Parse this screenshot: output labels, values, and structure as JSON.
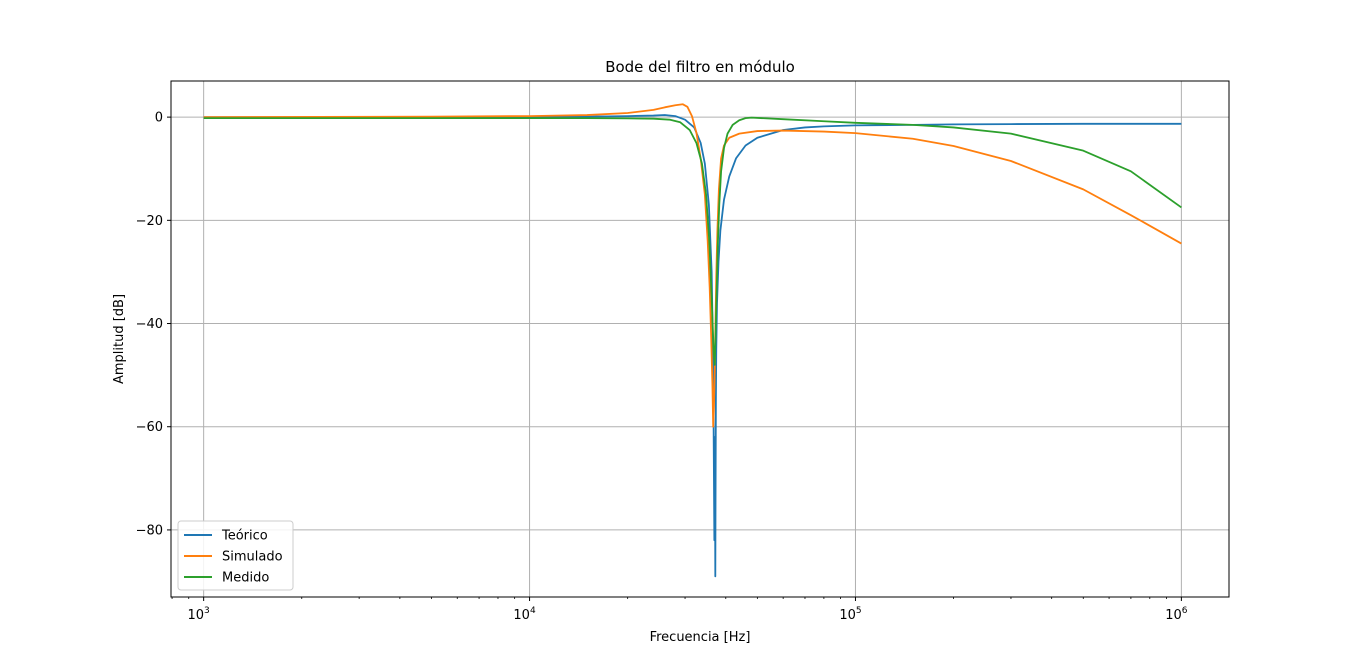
{
  "chart_data": {
    "type": "line",
    "title": "Bode del filtro en módulo",
    "xlabel": "Frecuencia [Hz]",
    "ylabel": "Amplitud [dB]",
    "xscale": "log",
    "xlim": [
      794,
      1400000
    ],
    "ylim": [
      -93,
      7
    ],
    "xticks": [
      1000,
      10000,
      100000,
      1000000
    ],
    "xtick_labels": [
      {
        "base": "10",
        "exp": "3"
      },
      {
        "base": "10",
        "exp": "4"
      },
      {
        "base": "10",
        "exp": "5"
      },
      {
        "base": "10",
        "exp": "6"
      }
    ],
    "yticks": [
      0,
      -20,
      -40,
      -60,
      -80
    ],
    "ytick_labels": [
      "0",
      "−20",
      "−40",
      "−60",
      "−80"
    ],
    "grid": true,
    "legend_position": "lower-left",
    "series": [
      {
        "name": "Teórico",
        "color": "#1f77b4",
        "x": [
          1000,
          5000,
          10000,
          15000,
          20000,
          24000,
          26000,
          28000,
          30000,
          32000,
          33500,
          34500,
          35500,
          36200,
          36600,
          36900,
          37000,
          37050,
          37150,
          37200,
          37300,
          37400,
          37600,
          38000,
          38500,
          39500,
          41000,
          43000,
          46000,
          50000,
          60000,
          70000,
          80000,
          100000,
          150000,
          200000,
          300000,
          500000,
          1000000
        ],
        "y": [
          0,
          0,
          0,
          0.1,
          0.2,
          0.3,
          0.4,
          0.2,
          -0.5,
          -2,
          -5,
          -9,
          -17,
          -30,
          -48,
          -82,
          -62,
          -65,
          -89,
          -76,
          -55,
          -45,
          -36,
          -28,
          -22,
          -16,
          -11.5,
          -8,
          -5.5,
          -4,
          -2.5,
          -2,
          -1.8,
          -1.6,
          -1.5,
          -1.4,
          -1.35,
          -1.3,
          -1.3
        ]
      },
      {
        "name": "Simulado",
        "color": "#ff7f0e",
        "x": [
          1000,
          5000,
          10000,
          15000,
          20000,
          24000,
          26000,
          28000,
          29500,
          30500,
          31500,
          32500,
          33500,
          34500,
          35200,
          35700,
          36100,
          36400,
          36600,
          36800,
          37000,
          37200,
          37400,
          37700,
          38100,
          38700,
          39500,
          41000,
          44000,
          50000,
          60000,
          80000,
          100000,
          150000,
          200000,
          300000,
          500000,
          700000,
          1000000
        ],
        "y": [
          0,
          0.1,
          0.2,
          0.4,
          0.8,
          1.4,
          1.9,
          2.3,
          2.5,
          2.0,
          0.2,
          -3,
          -8,
          -15,
          -24,
          -33,
          -43,
          -52,
          -60,
          -56,
          -49,
          -40,
          -31,
          -22,
          -14,
          -8,
          -5.5,
          -4,
          -3.2,
          -2.7,
          -2.6,
          -2.8,
          -3.1,
          -4.2,
          -5.6,
          -8.5,
          -14,
          -19,
          -24.5
        ]
      },
      {
        "name": "Medido",
        "color": "#2ca02c",
        "x": [
          1000,
          5000,
          10000,
          15000,
          20000,
          24000,
          27000,
          29000,
          31000,
          32500,
          33800,
          34800,
          35600,
          36200,
          36700,
          37000,
          37200,
          37500,
          37800,
          38200,
          38700,
          39500,
          40500,
          42000,
          44000,
          46000,
          48000,
          60000,
          80000,
          100000,
          150000,
          200000,
          300000,
          500000,
          700000,
          1000000
        ],
        "y": [
          -0.2,
          -0.2,
          -0.2,
          -0.2,
          -0.25,
          -0.3,
          -0.5,
          -1,
          -2.5,
          -5,
          -9,
          -15,
          -24,
          -35,
          -45,
          -48,
          -43,
          -34,
          -25,
          -17,
          -10.5,
          -6,
          -3.2,
          -1.5,
          -0.6,
          -0.2,
          -0.1,
          -0.4,
          -0.8,
          -1.1,
          -1.5,
          -2,
          -3.2,
          -6.5,
          -10.5,
          -17.5
        ]
      }
    ]
  }
}
